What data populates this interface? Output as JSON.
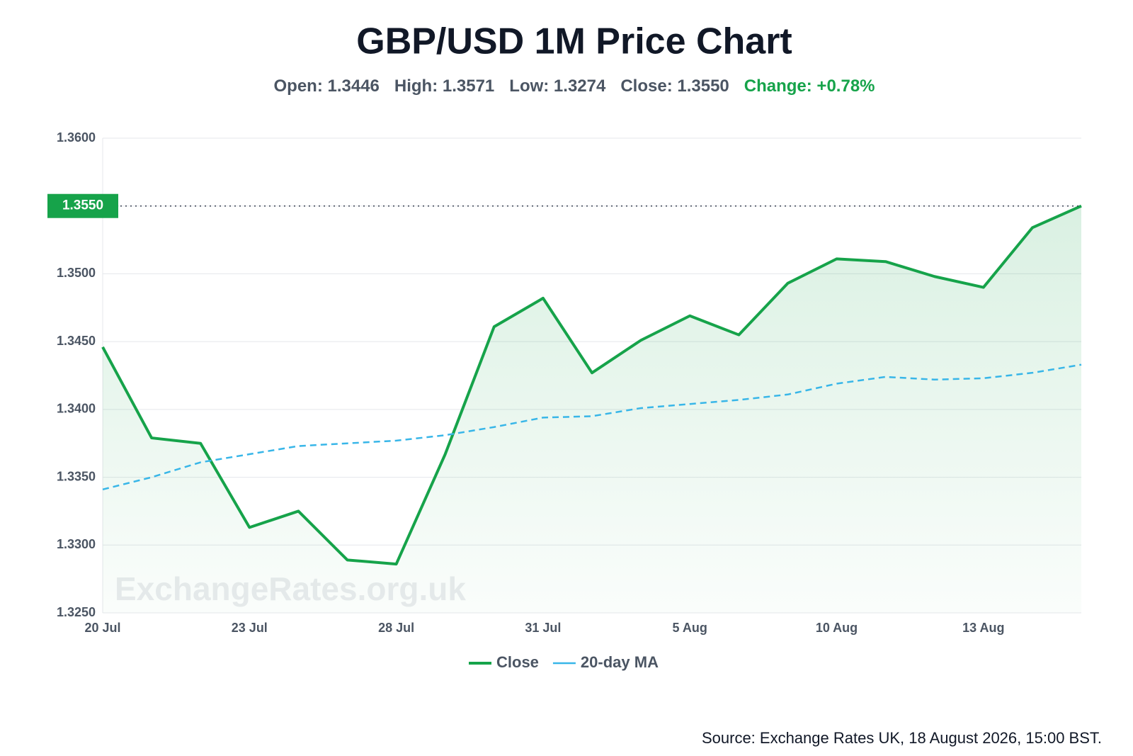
{
  "chart_data": {
    "type": "line",
    "title": "GBP/USD 1M Price Chart",
    "stats": [
      "Open: 1.3446",
      "High: 1.3571",
      "Low: 1.3274",
      "Close: 1.3550"
    ],
    "change": "Change: +0.78%",
    "categories": [
      "20 Jul",
      null,
      null,
      "23 Jul",
      null,
      null,
      "28 Jul",
      null,
      null,
      "31 Jul",
      null,
      null,
      "5 Aug",
      null,
      null,
      "10 Aug",
      null,
      null,
      "13 Aug",
      null,
      null
    ],
    "series": [
      {
        "name": "Close",
        "color": "#16a34a",
        "area": true,
        "last_label": "1.3550",
        "values": [
          1.3446,
          1.3379,
          1.3375,
          1.3313,
          1.3325,
          1.3289,
          1.3286,
          1.3367,
          1.3461,
          1.3482,
          1.3427,
          1.3451,
          1.3469,
          1.3455,
          1.3493,
          1.3511,
          1.3509,
          1.3498,
          1.349,
          1.3534,
          1.355
        ]
      },
      {
        "name": "20-day MA",
        "color": "#38b6e8",
        "dashed": true,
        "values": [
          1.3341,
          1.335,
          1.3361,
          1.3367,
          1.3373,
          1.3375,
          1.3377,
          1.3381,
          1.3387,
          1.3394,
          1.3395,
          1.3401,
          1.3404,
          1.3407,
          1.3411,
          1.3419,
          1.3424,
          1.3422,
          1.3423,
          1.3427,
          1.3433
        ]
      }
    ],
    "ylim": [
      1.325,
      1.36
    ],
    "yticks": [
      {
        "value": 1.325,
        "label": "1.3250"
      },
      {
        "value": 1.33,
        "label": "1.3300"
      },
      {
        "value": 1.335,
        "label": "1.3350"
      },
      {
        "value": 1.34,
        "label": "1.3400"
      },
      {
        "value": 1.345,
        "label": "1.3450"
      },
      {
        "value": 1.35,
        "label": "1.3500"
      },
      {
        "value": 1.355,
        "label": "1.3550"
      },
      {
        "value": 1.36,
        "label": "1.3600"
      }
    ],
    "grid": true,
    "legend": "bottom",
    "watermark": "ExchangeRates.org.uk",
    "source": "Source: Exchange Rates UK, 18 August 2026, 15:00 BST."
  }
}
